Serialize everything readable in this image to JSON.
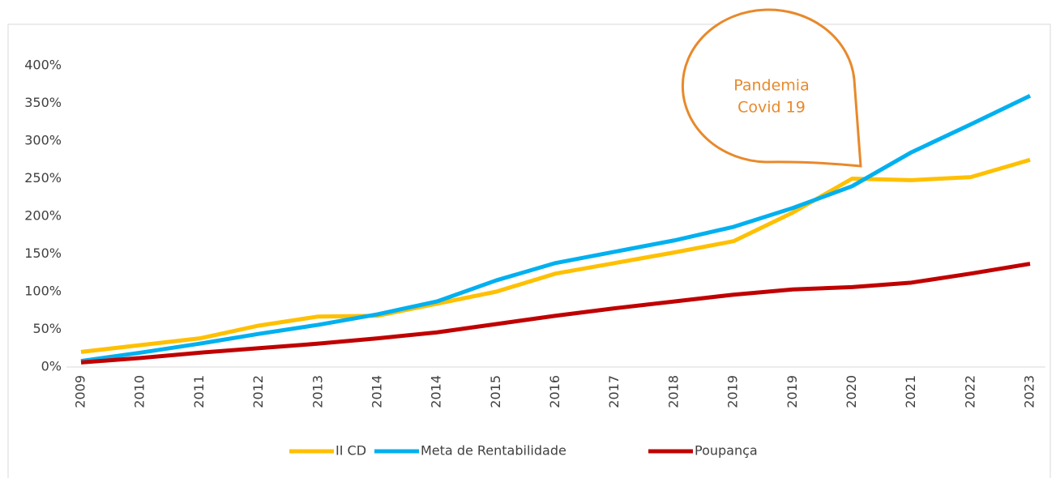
{
  "chart_data": {
    "type": "line",
    "categories": [
      "2009",
      "2010",
      "2011",
      "2012",
      "2013",
      "2014",
      "2014",
      "2015",
      "2016",
      "2017",
      "2018",
      "2019",
      "2019",
      "2020",
      "2021",
      "2022",
      "2023"
    ],
    "series": [
      {
        "name": "II CD",
        "color": "#FFC000",
        "values": [
          20,
          29,
          38,
          55,
          67,
          68,
          84,
          100,
          124,
          138,
          152,
          167,
          205,
          250,
          248,
          252,
          275
        ]
      },
      {
        "name": "Meta de Rentabilidade",
        "color": "#00B0F0",
        "values": [
          8,
          19,
          31,
          44,
          56,
          70,
          87,
          115,
          138,
          153,
          168,
          186,
          211,
          240,
          285,
          322,
          360
        ]
      },
      {
        "name": "Poupança",
        "color": "#C00000",
        "values": [
          6,
          12,
          19,
          25,
          31,
          38,
          46,
          57,
          68,
          78,
          87,
          96,
          103,
          106,
          112,
          124,
          137
        ]
      }
    ],
    "ylim": [
      0,
      400
    ],
    "yticks": [
      {
        "value": 0,
        "label": "0%"
      },
      {
        "value": 50,
        "label": "50%"
      },
      {
        "value": 100,
        "label": "100%"
      },
      {
        "value": 150,
        "label": "150%"
      },
      {
        "value": 200,
        "label": "200%"
      },
      {
        "value": 250,
        "label": "250%"
      },
      {
        "value": 300,
        "label": "300%"
      },
      {
        "value": 350,
        "label": "350%"
      },
      {
        "value": 400,
        "label": "400%"
      }
    ],
    "grid": false,
    "legend": "bottom",
    "annotation": {
      "lines": [
        "Pandemia",
        "Covid 19"
      ],
      "color": "#E8892B"
    }
  }
}
